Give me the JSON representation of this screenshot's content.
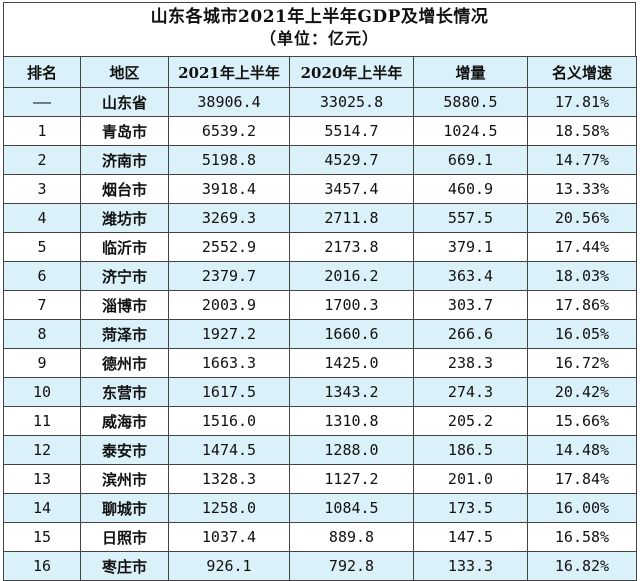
{
  "colors": {
    "shade": "#dbf1fa",
    "border": "#444444"
  },
  "title": "山东各城市2021年上半年GDP及增长情况",
  "subtitle": "（单位：亿元）",
  "headers": {
    "rank": "排名",
    "region": "地区",
    "gdp2021": "2021年上半年",
    "gdp2020": "2020年上半年",
    "increase": "增量",
    "growth": "名义增速"
  },
  "rows": [
    {
      "rank": "——",
      "region": "山东省",
      "gdp2021": "38906.4",
      "gdp2020": "33025.8",
      "increase": "5880.5",
      "growth": "17.81%"
    },
    {
      "rank": "1",
      "region": "青岛市",
      "gdp2021": "6539.2",
      "gdp2020": "5514.7",
      "increase": "1024.5",
      "growth": "18.58%"
    },
    {
      "rank": "2",
      "region": "济南市",
      "gdp2021": "5198.8",
      "gdp2020": "4529.7",
      "increase": "669.1",
      "growth": "14.77%"
    },
    {
      "rank": "3",
      "region": "烟台市",
      "gdp2021": "3918.4",
      "gdp2020": "3457.4",
      "increase": "460.9",
      "growth": "13.33%"
    },
    {
      "rank": "4",
      "region": "潍坊市",
      "gdp2021": "3269.3",
      "gdp2020": "2711.8",
      "increase": "557.5",
      "growth": "20.56%"
    },
    {
      "rank": "5",
      "region": "临沂市",
      "gdp2021": "2552.9",
      "gdp2020": "2173.8",
      "increase": "379.1",
      "growth": "17.44%"
    },
    {
      "rank": "6",
      "region": "济宁市",
      "gdp2021": "2379.7",
      "gdp2020": "2016.2",
      "increase": "363.4",
      "growth": "18.03%"
    },
    {
      "rank": "7",
      "region": "淄博市",
      "gdp2021": "2003.9",
      "gdp2020": "1700.3",
      "increase": "303.7",
      "growth": "17.86%"
    },
    {
      "rank": "8",
      "region": "菏泽市",
      "gdp2021": "1927.2",
      "gdp2020": "1660.6",
      "increase": "266.6",
      "growth": "16.05%"
    },
    {
      "rank": "9",
      "region": "德州市",
      "gdp2021": "1663.3",
      "gdp2020": "1425.0",
      "increase": "238.3",
      "growth": "16.72%"
    },
    {
      "rank": "10",
      "region": "东营市",
      "gdp2021": "1617.5",
      "gdp2020": "1343.2",
      "increase": "274.3",
      "growth": "20.42%"
    },
    {
      "rank": "11",
      "region": "威海市",
      "gdp2021": "1516.0",
      "gdp2020": "1310.8",
      "increase": "205.2",
      "growth": "15.66%"
    },
    {
      "rank": "12",
      "region": "泰安市",
      "gdp2021": "1474.5",
      "gdp2020": "1288.0",
      "increase": "186.5",
      "growth": "14.48%"
    },
    {
      "rank": "13",
      "region": "滨州市",
      "gdp2021": "1328.3",
      "gdp2020": "1127.2",
      "increase": "201.0",
      "growth": "17.84%"
    },
    {
      "rank": "14",
      "region": "聊城市",
      "gdp2021": "1258.0",
      "gdp2020": "1084.5",
      "increase": "173.5",
      "growth": "16.00%"
    },
    {
      "rank": "15",
      "region": "日照市",
      "gdp2021": "1037.4",
      "gdp2020": "889.8",
      "increase": "147.5",
      "growth": "16.58%"
    },
    {
      "rank": "16",
      "region": "枣庄市",
      "gdp2021": "926.1",
      "gdp2020": "792.8",
      "increase": "133.3",
      "growth": "16.82%"
    }
  ]
}
